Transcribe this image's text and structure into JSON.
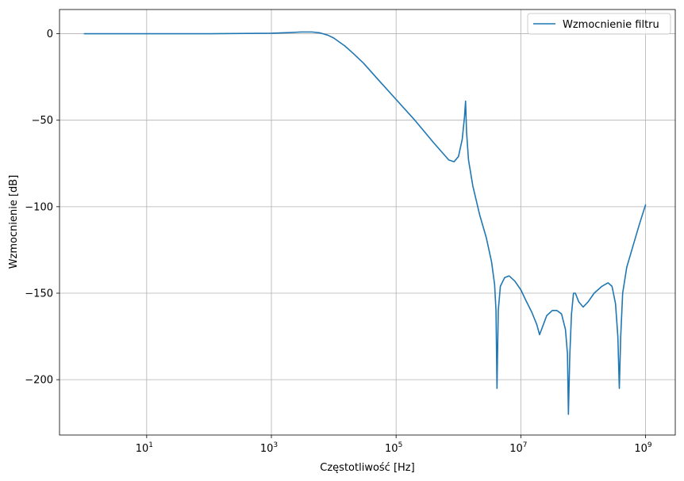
{
  "chart_data": {
    "type": "line",
    "title": "",
    "xlabel": "Częstotliwość [Hz]",
    "ylabel": "Wzmocnienie [dB]",
    "xscale": "log",
    "xlim": [
      0.4,
      3000000000
    ],
    "ylim": [
      -232,
      14
    ],
    "x_ticks": [
      {
        "value": 10,
        "base": "10",
        "exp": "1"
      },
      {
        "value": 1000,
        "base": "10",
        "exp": "3"
      },
      {
        "value": 100000,
        "base": "10",
        "exp": "5"
      },
      {
        "value": 10000000,
        "base": "10",
        "exp": "7"
      },
      {
        "value": 1000000000,
        "base": "10",
        "exp": "9"
      }
    ],
    "y_ticks": [
      {
        "value": 0,
        "label": "0"
      },
      {
        "value": -50,
        "label": "−50"
      },
      {
        "value": -100,
        "label": "−100"
      },
      {
        "value": -150,
        "label": "−150"
      },
      {
        "value": -200,
        "label": "−200"
      }
    ],
    "grid": true,
    "legend_position": "top-right",
    "series": [
      {
        "name": "Wzmocnienie filtru",
        "color": "#1f77b4",
        "points": [
          [
            1,
            0
          ],
          [
            10,
            0
          ],
          [
            100,
            0
          ],
          [
            1000,
            0.3
          ],
          [
            2000,
            0.7
          ],
          [
            3000,
            1.0
          ],
          [
            4500,
            1.0
          ],
          [
            6000,
            0.5
          ],
          [
            8000,
            -0.8
          ],
          [
            10000,
            -2.5
          ],
          [
            15000,
            -7
          ],
          [
            20000,
            -11
          ],
          [
            30000,
            -17
          ],
          [
            50000,
            -26
          ],
          [
            100000,
            -38
          ],
          [
            200000,
            -50
          ],
          [
            400000,
            -63
          ],
          [
            700000,
            -73
          ],
          [
            850000,
            -74
          ],
          [
            1000000,
            -71
          ],
          [
            1150000,
            -61
          ],
          [
            1250000,
            -48
          ],
          [
            1300000,
            -39
          ],
          [
            1350000,
            -57
          ],
          [
            1450000,
            -73
          ],
          [
            1700000,
            -88
          ],
          [
            2200000,
            -105
          ],
          [
            2800000,
            -118
          ],
          [
            3400000,
            -132
          ],
          [
            3800000,
            -145
          ],
          [
            4000000,
            -160
          ],
          [
            4150000,
            -205
          ],
          [
            4350000,
            -160
          ],
          [
            4700000,
            -146
          ],
          [
            5500000,
            -141
          ],
          [
            6500000,
            -140
          ],
          [
            8000000,
            -143
          ],
          [
            10000000,
            -148
          ],
          [
            12000000,
            -154
          ],
          [
            15000000,
            -161
          ],
          [
            18000000,
            -168
          ],
          [
            20000000,
            -174
          ],
          [
            22000000,
            -170
          ],
          [
            26000000,
            -163
          ],
          [
            32000000,
            -160
          ],
          [
            38000000,
            -160
          ],
          [
            45000000,
            -162
          ],
          [
            52000000,
            -171
          ],
          [
            56000000,
            -185
          ],
          [
            58000000,
            -220
          ],
          [
            61000000,
            -186
          ],
          [
            65000000,
            -162
          ],
          [
            70000000,
            -150
          ],
          [
            75000000,
            -150
          ],
          [
            85000000,
            -155
          ],
          [
            100000000,
            -158
          ],
          [
            120000000,
            -155
          ],
          [
            150000000,
            -150
          ],
          [
            200000000,
            -146
          ],
          [
            250000000,
            -144
          ],
          [
            290000000,
            -146
          ],
          [
            330000000,
            -156
          ],
          [
            360000000,
            -175
          ],
          [
            380000000,
            -205
          ],
          [
            400000000,
            -175
          ],
          [
            430000000,
            -150
          ],
          [
            500000000,
            -135
          ],
          [
            650000000,
            -121
          ],
          [
            800000000,
            -110
          ],
          [
            1000000000,
            -99
          ]
        ]
      }
    ]
  }
}
